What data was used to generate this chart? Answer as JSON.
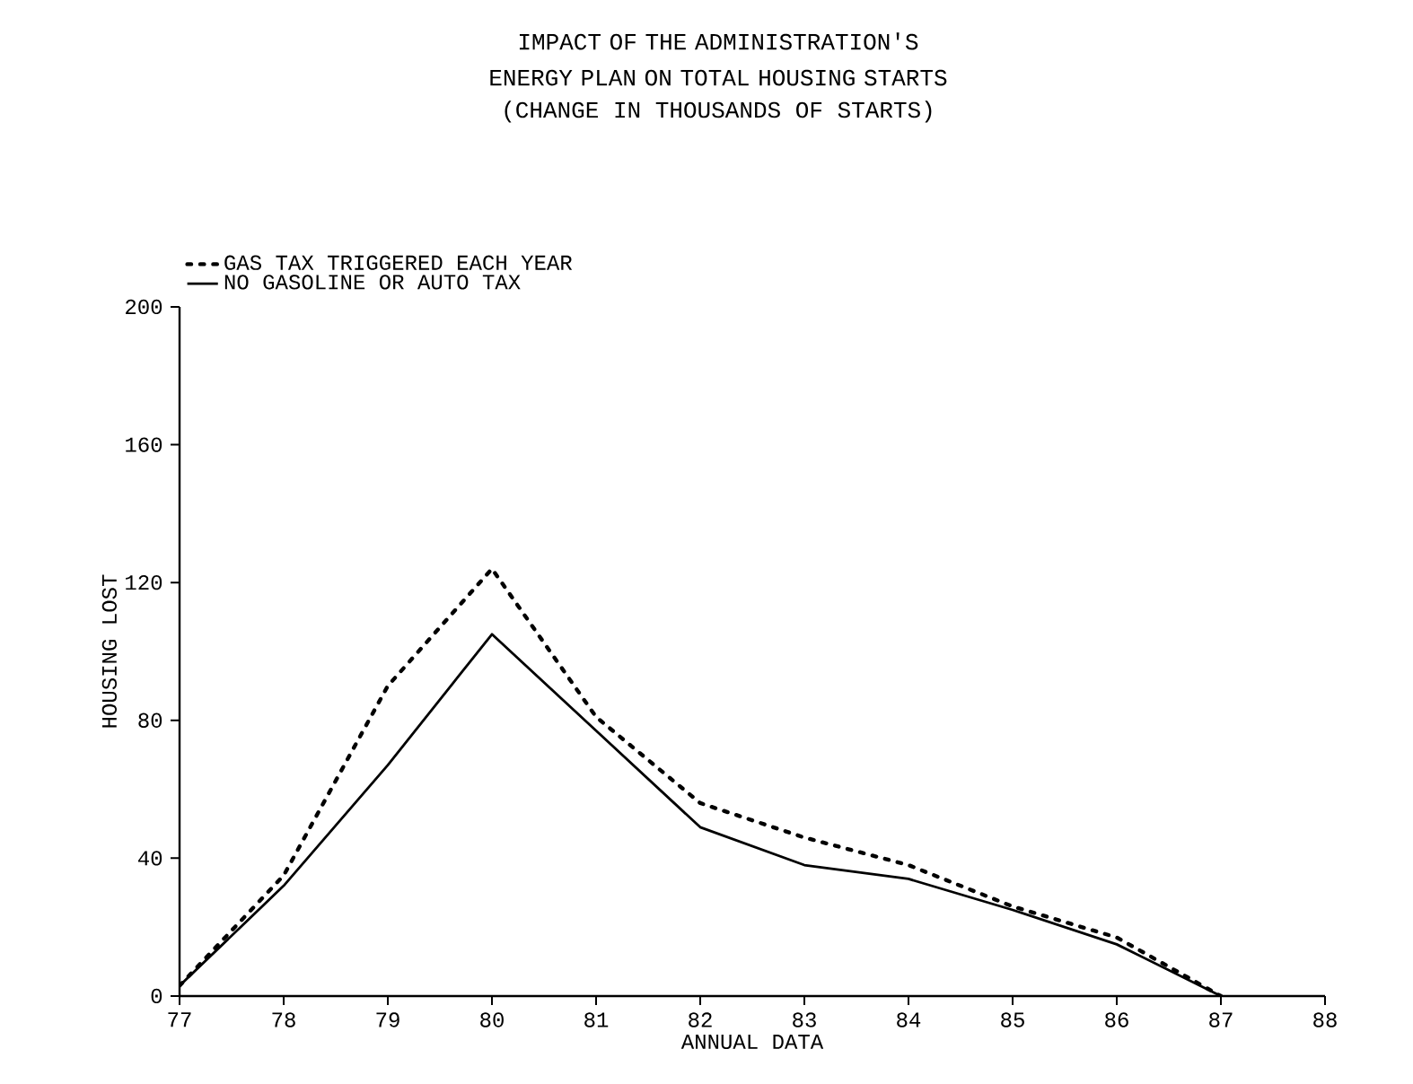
{
  "chart_data": {
    "type": "line",
    "title": "IMPACT OF THE ADMINISTRATION'S ENERGY PLAN ON TOTAL HOUSING STARTS",
    "subtitle": "(CHANGE IN THOUSANDS OF STARTS)",
    "xlabel": "ANNUAL DATA",
    "ylabel": "HOUSING LOST",
    "x": [
      77,
      78,
      79,
      80,
      81,
      82,
      83,
      84,
      85,
      86,
      87
    ],
    "series": [
      {
        "name": "GAS TAX TRIGGERED EACH YEAR",
        "color": "#000000",
        "line_style": "dotted",
        "values": [
          3,
          35,
          90,
          124,
          81,
          56,
          46,
          38,
          26,
          17,
          0
        ]
      },
      {
        "name": "NO GASOLINE OR AUTO TAX",
        "color": "#000000",
        "line_style": "solid",
        "values": [
          3,
          32,
          67,
          105,
          77,
          49,
          38,
          34,
          25,
          15,
          0
        ]
      }
    ],
    "xlim": [
      77,
      88
    ],
    "xticks": [
      77,
      78,
      79,
      80,
      81,
      82,
      83,
      84,
      85,
      86,
      87,
      88
    ],
    "ylim": [
      0,
      200
    ],
    "yticks": [
      0,
      40,
      80,
      120,
      160,
      200
    ],
    "grid": false,
    "legend": "top left",
    "marker": "none"
  }
}
